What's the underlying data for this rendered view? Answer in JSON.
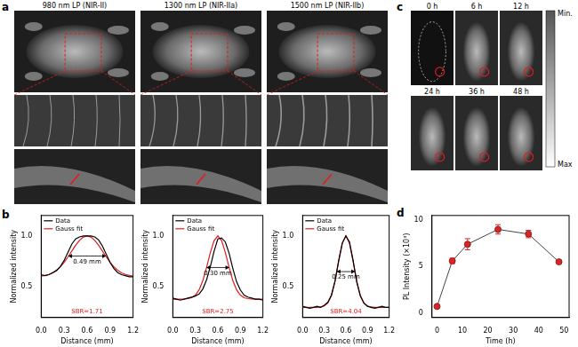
{
  "panel_labels": [
    "a",
    "b",
    "c",
    "d"
  ],
  "panel_a": {
    "columns": [
      "980 nm LP (NIR-II)",
      "1300 nm LP (NIR-IIa)",
      "1500 nm LP (NIR-IIb)"
    ]
  },
  "panel_c": {
    "times": [
      "0 h",
      "6 h",
      "12 h",
      "24 h",
      "36 h",
      "48 h"
    ],
    "colorbar": {
      "top": "Min.",
      "bottom": "Max"
    }
  },
  "chart_data": [
    {
      "type": "line",
      "xlabel": "Distance (mm)",
      "ylabel": "Normalized intensity",
      "x": [
        0,
        0.05,
        0.1,
        0.15,
        0.2,
        0.25,
        0.3,
        0.35,
        0.4,
        0.45,
        0.5,
        0.55,
        0.6,
        0.65,
        0.7,
        0.75,
        0.8,
        0.85,
        0.9,
        0.95,
        1.0,
        1.05,
        1.1,
        1.15,
        1.2
      ],
      "series": [
        {
          "name": "Data",
          "color": "#000000",
          "values": [
            0.62,
            0.61,
            0.62,
            0.64,
            0.66,
            0.7,
            0.76,
            0.84,
            0.92,
            0.97,
            0.99,
            1.0,
            1.0,
            1.0,
            0.99,
            0.96,
            0.9,
            0.82,
            0.74,
            0.68,
            0.64,
            0.62,
            0.61,
            0.6,
            0.6
          ]
        },
        {
          "name": "Gauss fit",
          "color": "#e41a1c",
          "values": [
            0.606,
            0.612,
            0.622,
            0.638,
            0.663,
            0.697,
            0.741,
            0.794,
            0.852,
            0.908,
            0.956,
            0.989,
            1.0,
            0.989,
            0.956,
            0.908,
            0.852,
            0.794,
            0.741,
            0.697,
            0.663,
            0.638,
            0.622,
            0.612,
            0.606
          ]
        }
      ],
      "xlim": [
        0,
        1.2
      ],
      "xticks": [
        {
          "value": 0,
          "label": "0.0"
        },
        0.3,
        0.6,
        0.9,
        1.2
      ],
      "ylim": [
        0.2,
        1.2
      ],
      "yticks": [
        0.5,
        {
          "value": 1,
          "label": "1.0"
        }
      ],
      "grid": false,
      "legend": "upper left",
      "width_marker": {
        "value": 0.49,
        "label": "0.49 mm"
      },
      "annotations": [
        {
          "text": "SBR=1.71",
          "color": "#e41a1c"
        }
      ]
    },
    {
      "type": "line",
      "xlabel": "Distance (mm)",
      "ylabel": "Normalized intensity",
      "x": [
        0,
        0.05,
        0.1,
        0.15,
        0.2,
        0.25,
        0.3,
        0.35,
        0.4,
        0.45,
        0.5,
        0.55,
        0.6,
        0.65,
        0.7,
        0.75,
        0.8,
        0.85,
        0.9,
        0.95,
        1.0,
        1.05,
        1.1,
        1.15,
        1.2
      ],
      "series": [
        {
          "name": "Data",
          "color": "#000000",
          "values": [
            0.39,
            0.38,
            0.37,
            0.38,
            0.39,
            0.4,
            0.41,
            0.43,
            0.48,
            0.57,
            0.7,
            0.85,
            0.97,
            0.98,
            0.94,
            0.83,
            0.68,
            0.55,
            0.47,
            0.42,
            0.4,
            0.39,
            0.38,
            0.38,
            0.37
          ]
        },
        {
          "name": "Gauss fit",
          "color": "#e41a1c",
          "values": [
            0.38,
            0.38,
            0.38,
            0.381,
            0.385,
            0.394,
            0.419,
            0.471,
            0.561,
            0.69,
            0.836,
            0.954,
            1.0,
            0.954,
            0.836,
            0.69,
            0.561,
            0.471,
            0.419,
            0.394,
            0.385,
            0.381,
            0.38,
            0.38,
            0.38
          ]
        }
      ],
      "xlim": [
        0,
        1.2
      ],
      "xticks": [
        {
          "value": 0,
          "label": "0.0"
        },
        0.3,
        0.6,
        0.9,
        1.2
      ],
      "ylim": [
        0.2,
        1.2
      ],
      "yticks": [
        0.5,
        {
          "value": 1,
          "label": "1.0"
        }
      ],
      "grid": false,
      "legend": "upper left",
      "width_marker": {
        "value": 0.3,
        "label": "0.30 mm"
      },
      "annotations": [
        {
          "text": "SBR=2.75",
          "color": "#e41a1c"
        }
      ]
    },
    {
      "type": "line",
      "xlabel": "Distance (mm)",
      "ylabel": "Normalized intensity",
      "x": [
        0,
        0.05,
        0.1,
        0.15,
        0.2,
        0.25,
        0.3,
        0.35,
        0.4,
        0.45,
        0.5,
        0.55,
        0.6,
        0.65,
        0.7,
        0.75,
        0.8,
        0.85,
        0.9,
        0.95,
        1.0,
        1.05,
        1.1,
        1.15,
        1.2
      ],
      "series": [
        {
          "name": "Data",
          "color": "#000000",
          "values": [
            0.31,
            0.3,
            0.29,
            0.3,
            0.31,
            0.3,
            0.32,
            0.35,
            0.42,
            0.56,
            0.76,
            0.93,
            1.0,
            0.94,
            0.76,
            0.55,
            0.41,
            0.34,
            0.31,
            0.3,
            0.29,
            0.3,
            0.31,
            0.3,
            0.3
          ]
        },
        {
          "name": "Gauss fit",
          "color": "#e41a1c",
          "values": [
            0.3,
            0.3,
            0.3,
            0.3,
            0.3,
            0.303,
            0.313,
            0.343,
            0.418,
            0.557,
            0.749,
            0.926,
            1.0,
            0.926,
            0.749,
            0.557,
            0.418,
            0.343,
            0.313,
            0.303,
            0.3,
            0.3,
            0.3,
            0.3,
            0.3
          ]
        }
      ],
      "xlim": [
        0,
        1.2
      ],
      "xticks": [
        {
          "value": 0,
          "label": "0.0"
        },
        0.3,
        0.6,
        0.9,
        1.2
      ],
      "ylim": [
        0.2,
        1.2
      ],
      "yticks": [
        0.5,
        {
          "value": 1,
          "label": "1.0"
        }
      ],
      "grid": false,
      "legend": "upper left",
      "width_marker": {
        "value": 0.25,
        "label": "0.25 mm"
      },
      "annotations": [
        {
          "text": "SBR=4.04",
          "color": "#e41a1c"
        }
      ]
    },
    {
      "type": "line",
      "xlabel": "Time (h)",
      "ylabel": "PL Intensity (×10³)",
      "x": [
        0,
        6,
        12,
        24,
        36,
        48
      ],
      "values": [
        0.7,
        5.6,
        7.4,
        9.0,
        8.5,
        5.5
      ],
      "errors": [
        0.1,
        0.3,
        0.6,
        0.5,
        0.4,
        0.2
      ],
      "color": "#d62728",
      "marker": "circle",
      "xlim": [
        -2,
        52
      ],
      "xticks": [
        0,
        10,
        20,
        30,
        40,
        50
      ],
      "ylim": [
        -0.5,
        10.5
      ],
      "yticks": [
        0,
        5,
        10
      ],
      "grid": false
    }
  ]
}
